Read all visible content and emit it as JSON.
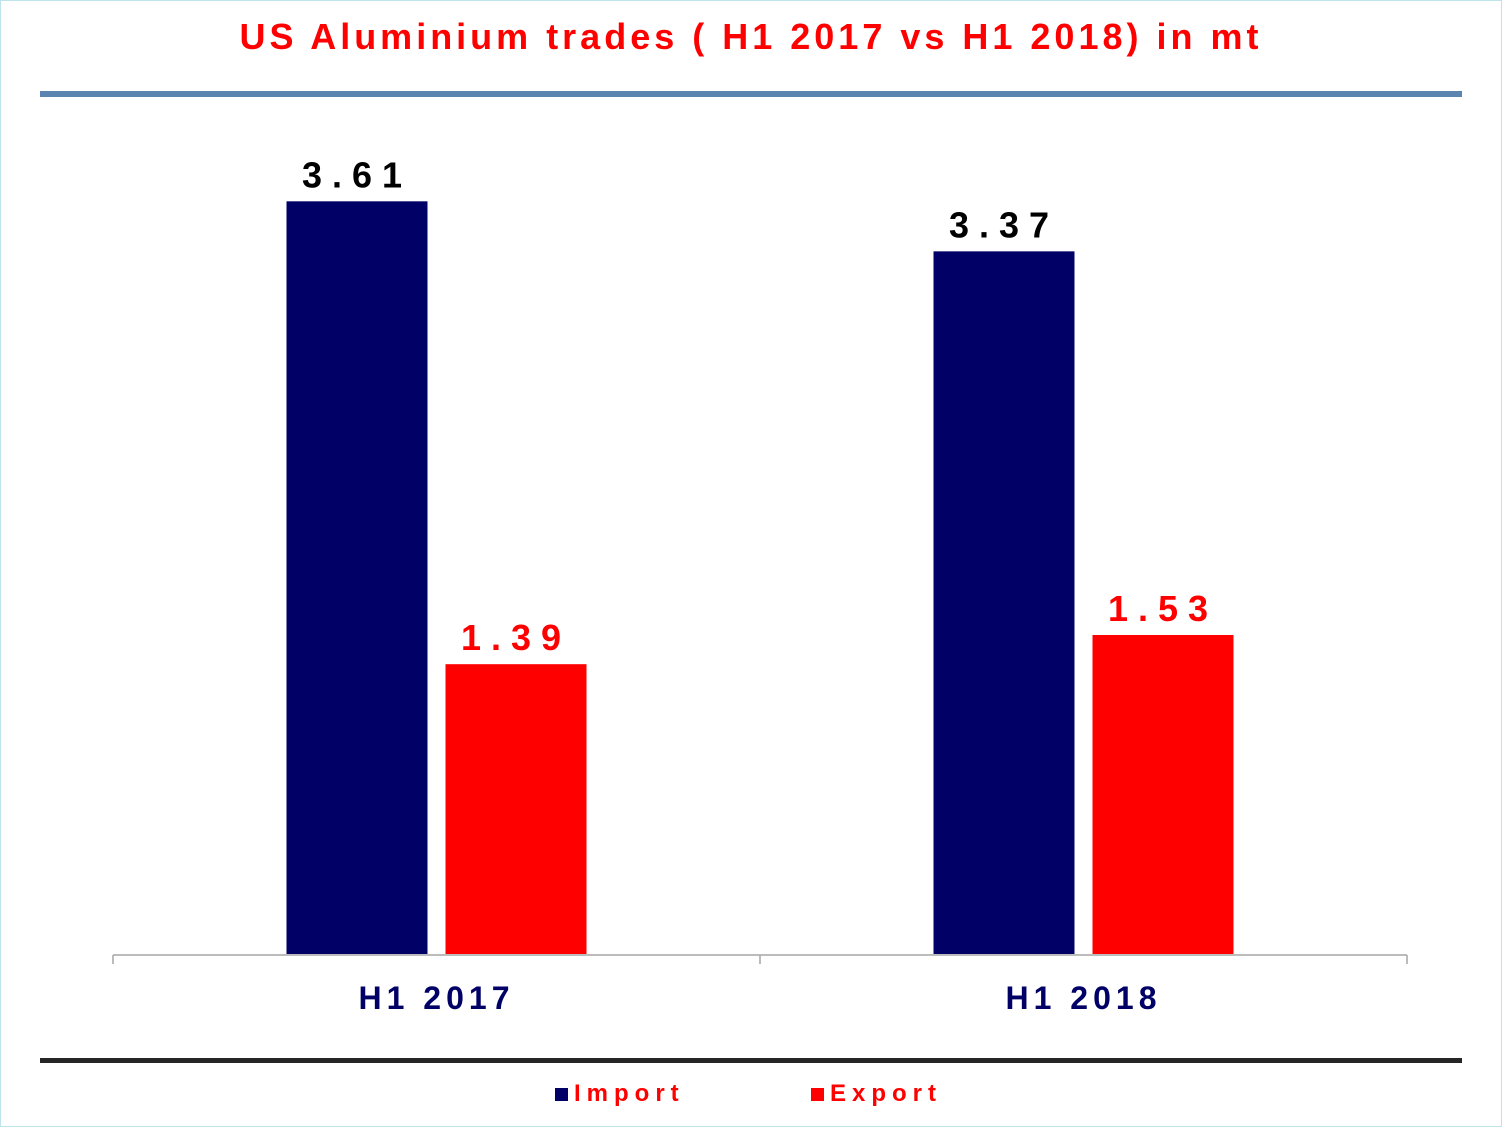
{
  "title": "US Aluminium trades ( H1 2017 vs H1 2018) in mt",
  "colors": {
    "import": "#000066",
    "export": "#ff0000",
    "category_label": "#000066"
  },
  "chart_data": {
    "type": "bar",
    "title": "US Aluminium trades ( H1 2017 vs H1 2018) in mt",
    "categories": [
      "H1 2017",
      "H1 2018"
    ],
    "series": [
      {
        "name": "Import",
        "values": [
          3.61,
          3.37
        ],
        "labels": [
          "3.61",
          "3.37"
        ],
        "color": "#000066"
      },
      {
        "name": "Export",
        "values": [
          1.39,
          1.53
        ],
        "labels": [
          "1.39",
          "1.53"
        ],
        "color": "#ff0000"
      }
    ],
    "ylim": [
      0,
      4
    ],
    "grid": false,
    "legend": "bottom",
    "xlabel": "",
    "ylabel": ""
  },
  "legend": [
    {
      "name": "Import",
      "color": "#000066"
    },
    {
      "name": "Export",
      "color": "#ff0000"
    }
  ]
}
